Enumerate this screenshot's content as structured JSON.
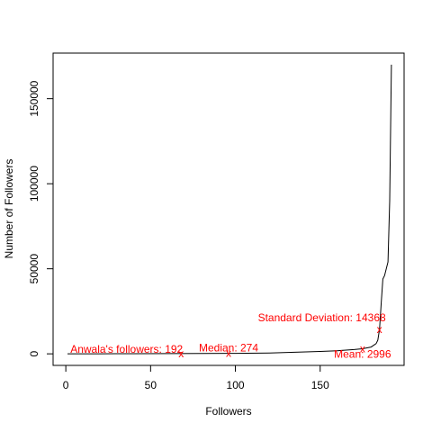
{
  "chart_data": {
    "type": "line",
    "title": "",
    "xlabel": "Followers",
    "ylabel": "Number of Followers",
    "xlim": [
      0,
      192
    ],
    "ylim": [
      0,
      170000
    ],
    "xticks": [
      0,
      50,
      100,
      150
    ],
    "yticks": [
      0,
      50000,
      100000,
      150000
    ],
    "grid": false,
    "line_color": "#000000",
    "annotation_color": "#ff0000",
    "series": [
      {
        "x": [
          1,
          20,
          40,
          60,
          80,
          100,
          120,
          135,
          150,
          160,
          170,
          175,
          180,
          183,
          184,
          185,
          186,
          187,
          188,
          189,
          190,
          191,
          192
        ],
        "y": [
          0,
          20,
          60,
          120,
          200,
          300,
          500,
          900,
          1400,
          1800,
          2500,
          3000,
          4000,
          6000,
          8000,
          14368,
          30000,
          44000,
          46000,
          50000,
          54000,
          90000,
          170000
        ]
      }
    ],
    "annotations": [
      {
        "label": "Anwala's followers: 192",
        "x": 68,
        "y": 192
      },
      {
        "label": "Median: 274",
        "x": 96,
        "y": 274
      },
      {
        "label": "Mean: 2996",
        "x": 175,
        "y": 2996
      },
      {
        "label": "Standard Deviation: 14368",
        "x": 185,
        "y": 14368
      }
    ]
  }
}
